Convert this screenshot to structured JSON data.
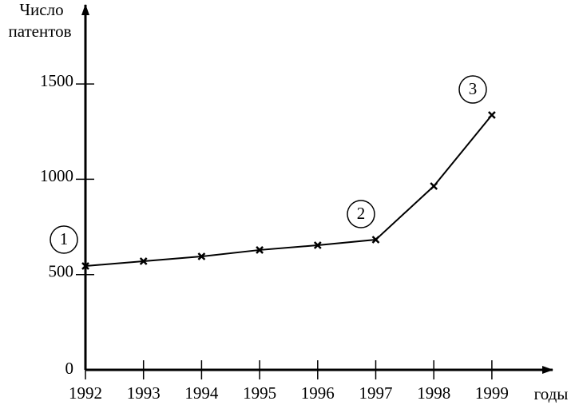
{
  "chart_data": {
    "type": "line",
    "ylabel": [
      "Число",
      "патентов"
    ],
    "xlabel": "годы",
    "x": [
      1992,
      1993,
      1994,
      1995,
      1996,
      1997,
      1998,
      1999
    ],
    "series": [
      {
        "name": null,
        "color": "#000000",
        "values": [
          545,
          570,
          595,
          629,
          654,
          683,
          964,
          1337
        ]
      }
    ],
    "xlim": [
      1992,
      2000
    ],
    "xticks": [
      1992,
      1993,
      1994,
      1995,
      1996,
      1997,
      1998,
      1999
    ],
    "ylim": [
      0,
      1900
    ],
    "yticks": [
      0,
      500,
      1000,
      1500
    ],
    "annotations": [
      "1",
      "2",
      "3"
    ],
    "grid": false
  }
}
